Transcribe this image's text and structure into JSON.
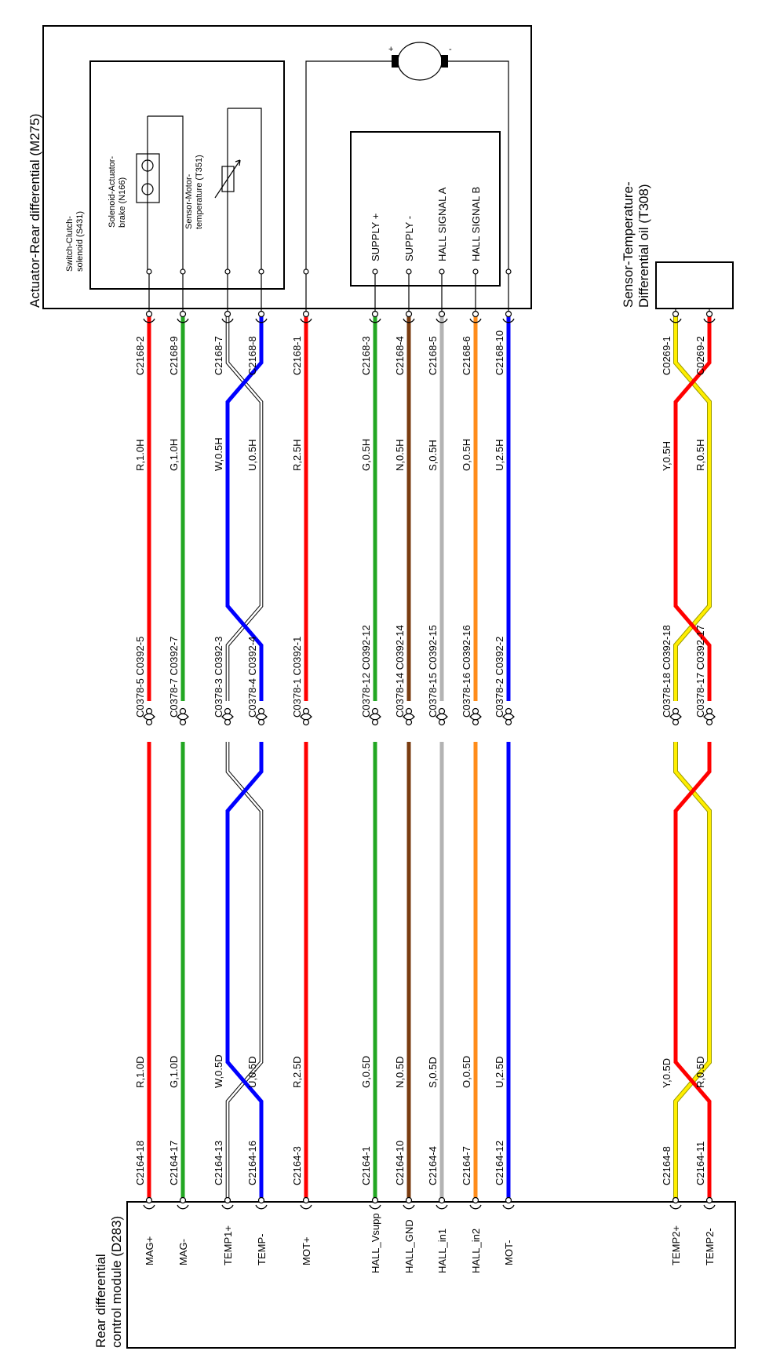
{
  "diagram": {
    "actuator": {
      "title": "Actuator-Rear differential (M275)",
      "switch_label": "Switch-Clutch-solenoid (S431)",
      "solenoid_label": "Solenoid-Actuator-brake (N166)",
      "temp_sensor_label": "Sensor-Motor-temperature (T351)",
      "motor_plus": "+",
      "motor_minus": "-",
      "hall_pins": [
        "SUPPLY +",
        "SUPPLY -",
        "HALL SIGNAL A",
        "HALL SIGNAL B"
      ]
    },
    "oil_sensor": {
      "title": "Sensor-Temperature-Differential oil (T308)"
    },
    "module": {
      "title": "Rear differential control module (D283)",
      "pins": [
        "MAG+",
        "MAG-",
        "TEMP1+",
        "TEMP-",
        "MOT+",
        "HALL_Vsupp",
        "HALL_GND",
        "HALL_in1",
        "HALL_in2",
        "MOT-",
        "TEMP2+",
        "TEMP2-"
      ]
    },
    "wires": [
      {
        "color": "#ff0000",
        "top_conn": "C2168-2",
        "upper_spec": "R,1.0H",
        "mid_conn": "C0378-5 C0392-5",
        "lower_spec": "R,1.0D",
        "bottom_conn": "C2164-18"
      },
      {
        "color": "#22a722",
        "top_conn": "C2168-9",
        "upper_spec": "G,1.0H",
        "mid_conn": "C0378-7 C0392-7",
        "lower_spec": "G,1.0D",
        "bottom_conn": "C2164-17"
      },
      {
        "color": "#ffffff",
        "top_conn": "C2168-7",
        "upper_spec": "W,0.5H",
        "mid_conn": "C0378-3 C0392-3",
        "lower_spec": "W,0.5D",
        "bottom_conn": "C2164-13"
      },
      {
        "color": "#0000ff",
        "top_conn": "C2168-8",
        "upper_spec": "U,0.5H",
        "mid_conn": "C0378-4 C0392-4",
        "lower_spec": "U,0.5D",
        "bottom_conn": "C2164-16"
      },
      {
        "color": "#ff0000",
        "top_conn": "C2168-1",
        "upper_spec": "R,2.5H",
        "mid_conn": "C0378-1 C0392-1",
        "lower_spec": "R,2.5D",
        "bottom_conn": "C2164-3"
      },
      {
        "color": "#22a722",
        "top_conn": "C2168-3",
        "upper_spec": "G,0.5H",
        "mid_conn": "C0378-12 C0392-12",
        "lower_spec": "G,0.5D",
        "bottom_conn": "C2164-1"
      },
      {
        "color": "#7a3c10",
        "top_conn": "C2168-4",
        "upper_spec": "N,0.5H",
        "mid_conn": "C0378-14 C0392-14",
        "lower_spec": "N,0.5D",
        "bottom_conn": "C2164-10"
      },
      {
        "color": "#b3b3b3",
        "top_conn": "C2168-5",
        "upper_spec": "S,0.5H",
        "mid_conn": "C0378-15 C0392-15",
        "lower_spec": "S,0.5D",
        "bottom_conn": "C2164-4"
      },
      {
        "color": "#ff8c1a",
        "top_conn": "C2168-6",
        "upper_spec": "O,0.5H",
        "mid_conn": "C0378-16 C0392-16",
        "lower_spec": "O,0.5D",
        "bottom_conn": "C2164-7"
      },
      {
        "color": "#0000ff",
        "top_conn": "C2168-10",
        "upper_spec": "U,2.5H",
        "mid_conn": "C0378-2 C0392-2",
        "lower_spec": "U,2.5D",
        "bottom_conn": "C2164-12"
      },
      {
        "color": "#ffee00",
        "top_conn": "C0269-1",
        "upper_spec": "Y,0.5H",
        "mid_conn": "C0378-18 C0392-18",
        "lower_spec": "Y,0.5D",
        "bottom_conn": "C2164-8"
      },
      {
        "color": "#ff0000",
        "top_conn": "C0269-2",
        "upper_spec": "R,0.5H",
        "mid_conn": "C0378-17 C0392-17",
        "lower_spec": "R,0.5D",
        "bottom_conn": "C2164-11"
      }
    ]
  }
}
